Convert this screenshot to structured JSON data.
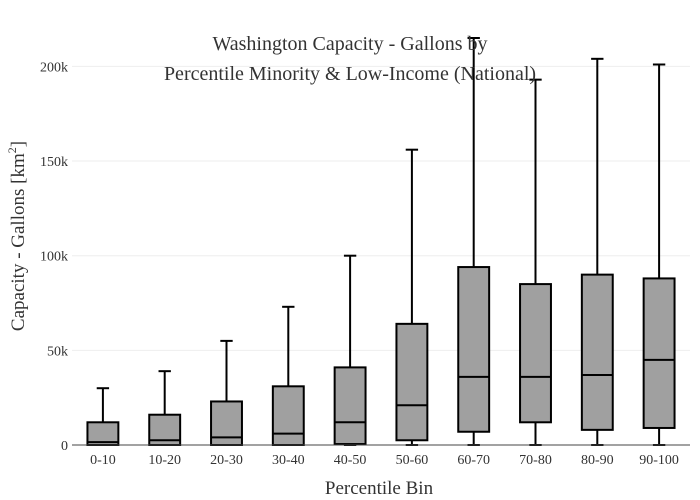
{
  "chart_data": {
    "type": "box",
    "title": [
      "Washington Capacity - Gallons by",
      "Percentile Minority & Low-Income (National)"
    ],
    "xlabel": "Percentile Bin",
    "ylabel": "Capacity - Gallons",
    "ylabel_unit_base": "km",
    "ylabel_unit_exp": "2",
    "ylim": [
      0,
      215000
    ],
    "yticks": [
      0,
      50000,
      100000,
      150000,
      200000
    ],
    "ytick_labels": [
      "0",
      "50k",
      "100k",
      "150k",
      "200k"
    ],
    "grid": true,
    "categories": [
      "0-10",
      "10-20",
      "20-30",
      "30-40",
      "40-50",
      "50-60",
      "60-70",
      "70-80",
      "80-90",
      "90-100"
    ],
    "series": [
      {
        "min": 0,
        "q1": 0,
        "median": 1500,
        "q3": 12000,
        "max": 30000
      },
      {
        "min": 0,
        "q1": 0,
        "median": 2500,
        "q3": 16000,
        "max": 39000
      },
      {
        "min": 0,
        "q1": 0,
        "median": 4000,
        "q3": 23000,
        "max": 55000
      },
      {
        "min": 0,
        "q1": 0,
        "median": 6000,
        "q3": 31000,
        "max": 73000
      },
      {
        "min": 0,
        "q1": 500,
        "median": 12000,
        "q3": 41000,
        "max": 100000
      },
      {
        "min": 0,
        "q1": 2500,
        "median": 21000,
        "q3": 64000,
        "max": 156000
      },
      {
        "min": 0,
        "q1": 7000,
        "median": 36000,
        "q3": 94000,
        "max": 215000
      },
      {
        "min": 0,
        "q1": 12000,
        "median": 36000,
        "q3": 85000,
        "max": 193000
      },
      {
        "min": 0,
        "q1": 8000,
        "median": 37000,
        "q3": 90000,
        "max": 204000
      },
      {
        "min": 0,
        "q1": 9000,
        "median": 45000,
        "q3": 88000,
        "max": 201000
      }
    ],
    "colors": {
      "box_fill": "#a0a0a0",
      "box_line": "#000000",
      "grid": "#eeeeee",
      "text": "#333333"
    }
  }
}
